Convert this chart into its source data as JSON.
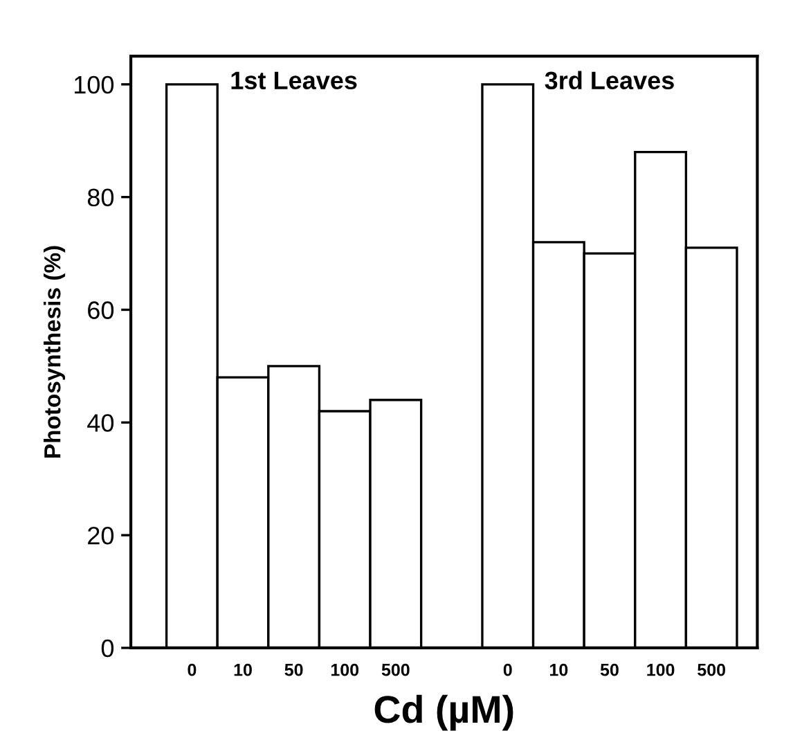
{
  "chart_data": {
    "type": "bar",
    "xlabel": "Cd (µM)",
    "ylabel": "Photosynthesis (%)",
    "categories": [
      "0",
      "10",
      "50",
      "100",
      "500",
      "0",
      "10",
      "50",
      "100",
      "500"
    ],
    "values": [
      100,
      48,
      50,
      42,
      44,
      100,
      72,
      70,
      88,
      71
    ],
    "color": "#ffffff",
    "annotations": [
      "1st Leaves",
      "3rd Leaves"
    ],
    "ylim": [
      0,
      105
    ],
    "yticks": [
      0,
      20,
      40,
      60,
      80,
      100
    ],
    "grid": false,
    "legend": false
  }
}
